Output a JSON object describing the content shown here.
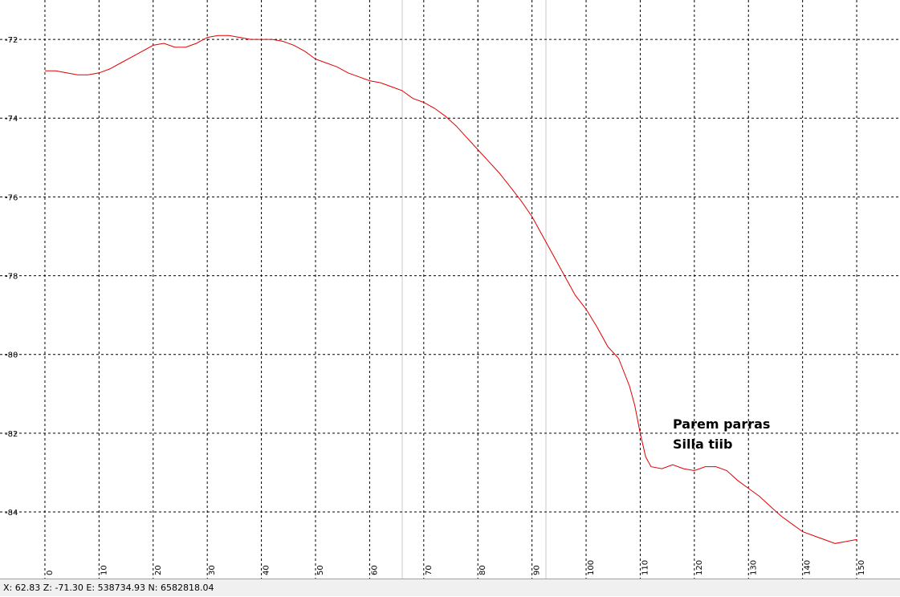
{
  "chart_data": {
    "type": "line",
    "x": [
      0,
      2,
      4,
      6,
      8,
      10,
      12,
      14,
      16,
      18,
      20,
      22,
      24,
      26,
      28,
      30,
      32,
      34,
      36,
      38,
      40,
      42,
      44,
      46,
      48,
      50,
      52,
      54,
      56,
      58,
      60,
      62,
      64,
      66,
      68,
      70,
      72,
      74,
      76,
      78,
      80,
      82,
      84,
      86,
      88,
      90,
      92,
      94,
      96,
      98,
      100,
      102,
      104,
      106,
      108,
      109,
      110,
      111,
      112,
      114,
      116,
      118,
      120,
      122,
      124,
      126,
      128,
      130,
      132,
      134,
      136,
      138,
      140,
      142,
      144,
      146,
      148,
      150
    ],
    "series": [
      {
        "color": "#e00000",
        "values": [
          -72.8,
          -72.8,
          -72.85,
          -72.9,
          -72.9,
          -72.85,
          -72.75,
          -72.6,
          -72.45,
          -72.3,
          -72.15,
          -72.1,
          -72.2,
          -72.2,
          -72.1,
          -71.95,
          -71.9,
          -71.9,
          -71.95,
          -72.0,
          -72.0,
          -72.0,
          -72.05,
          -72.15,
          -72.3,
          -72.5,
          -72.6,
          -72.7,
          -72.85,
          -72.95,
          -73.05,
          -73.1,
          -73.2,
          -73.3,
          -73.5,
          -73.6,
          -73.75,
          -73.95,
          -74.2,
          -74.5,
          -74.8,
          -75.1,
          -75.4,
          -75.75,
          -76.1,
          -76.5,
          -77.0,
          -77.5,
          -78.0,
          -78.5,
          -78.85,
          -79.3,
          -79.8,
          -80.1,
          -80.8,
          -81.3,
          -82.0,
          -82.6,
          -82.85,
          -82.9,
          -82.8,
          -82.9,
          -82.95,
          -82.85,
          -82.85,
          -82.95,
          -83.2,
          -83.4,
          -83.6,
          -83.85,
          -84.1,
          -84.3,
          -84.5,
          -84.6,
          -84.7,
          -84.8,
          -84.75,
          -84.7
        ]
      }
    ],
    "xlim": [
      -8.3,
      158
    ],
    "xticks": [
      0,
      10,
      20,
      30,
      40,
      50,
      60,
      70,
      80,
      90,
      100,
      110,
      120,
      130,
      140,
      150
    ],
    "ylim": [
      -85.69,
      -71
    ],
    "yticks": [
      -84,
      -82,
      -80,
      -78,
      -76,
      -74,
      -72
    ],
    "grid": true,
    "annotations": [
      "Parem parras",
      "Silla tiib"
    ]
  },
  "status_bar": "X: 62.83 Z: -71.30 E: 538734.93 N: 6582818.04"
}
